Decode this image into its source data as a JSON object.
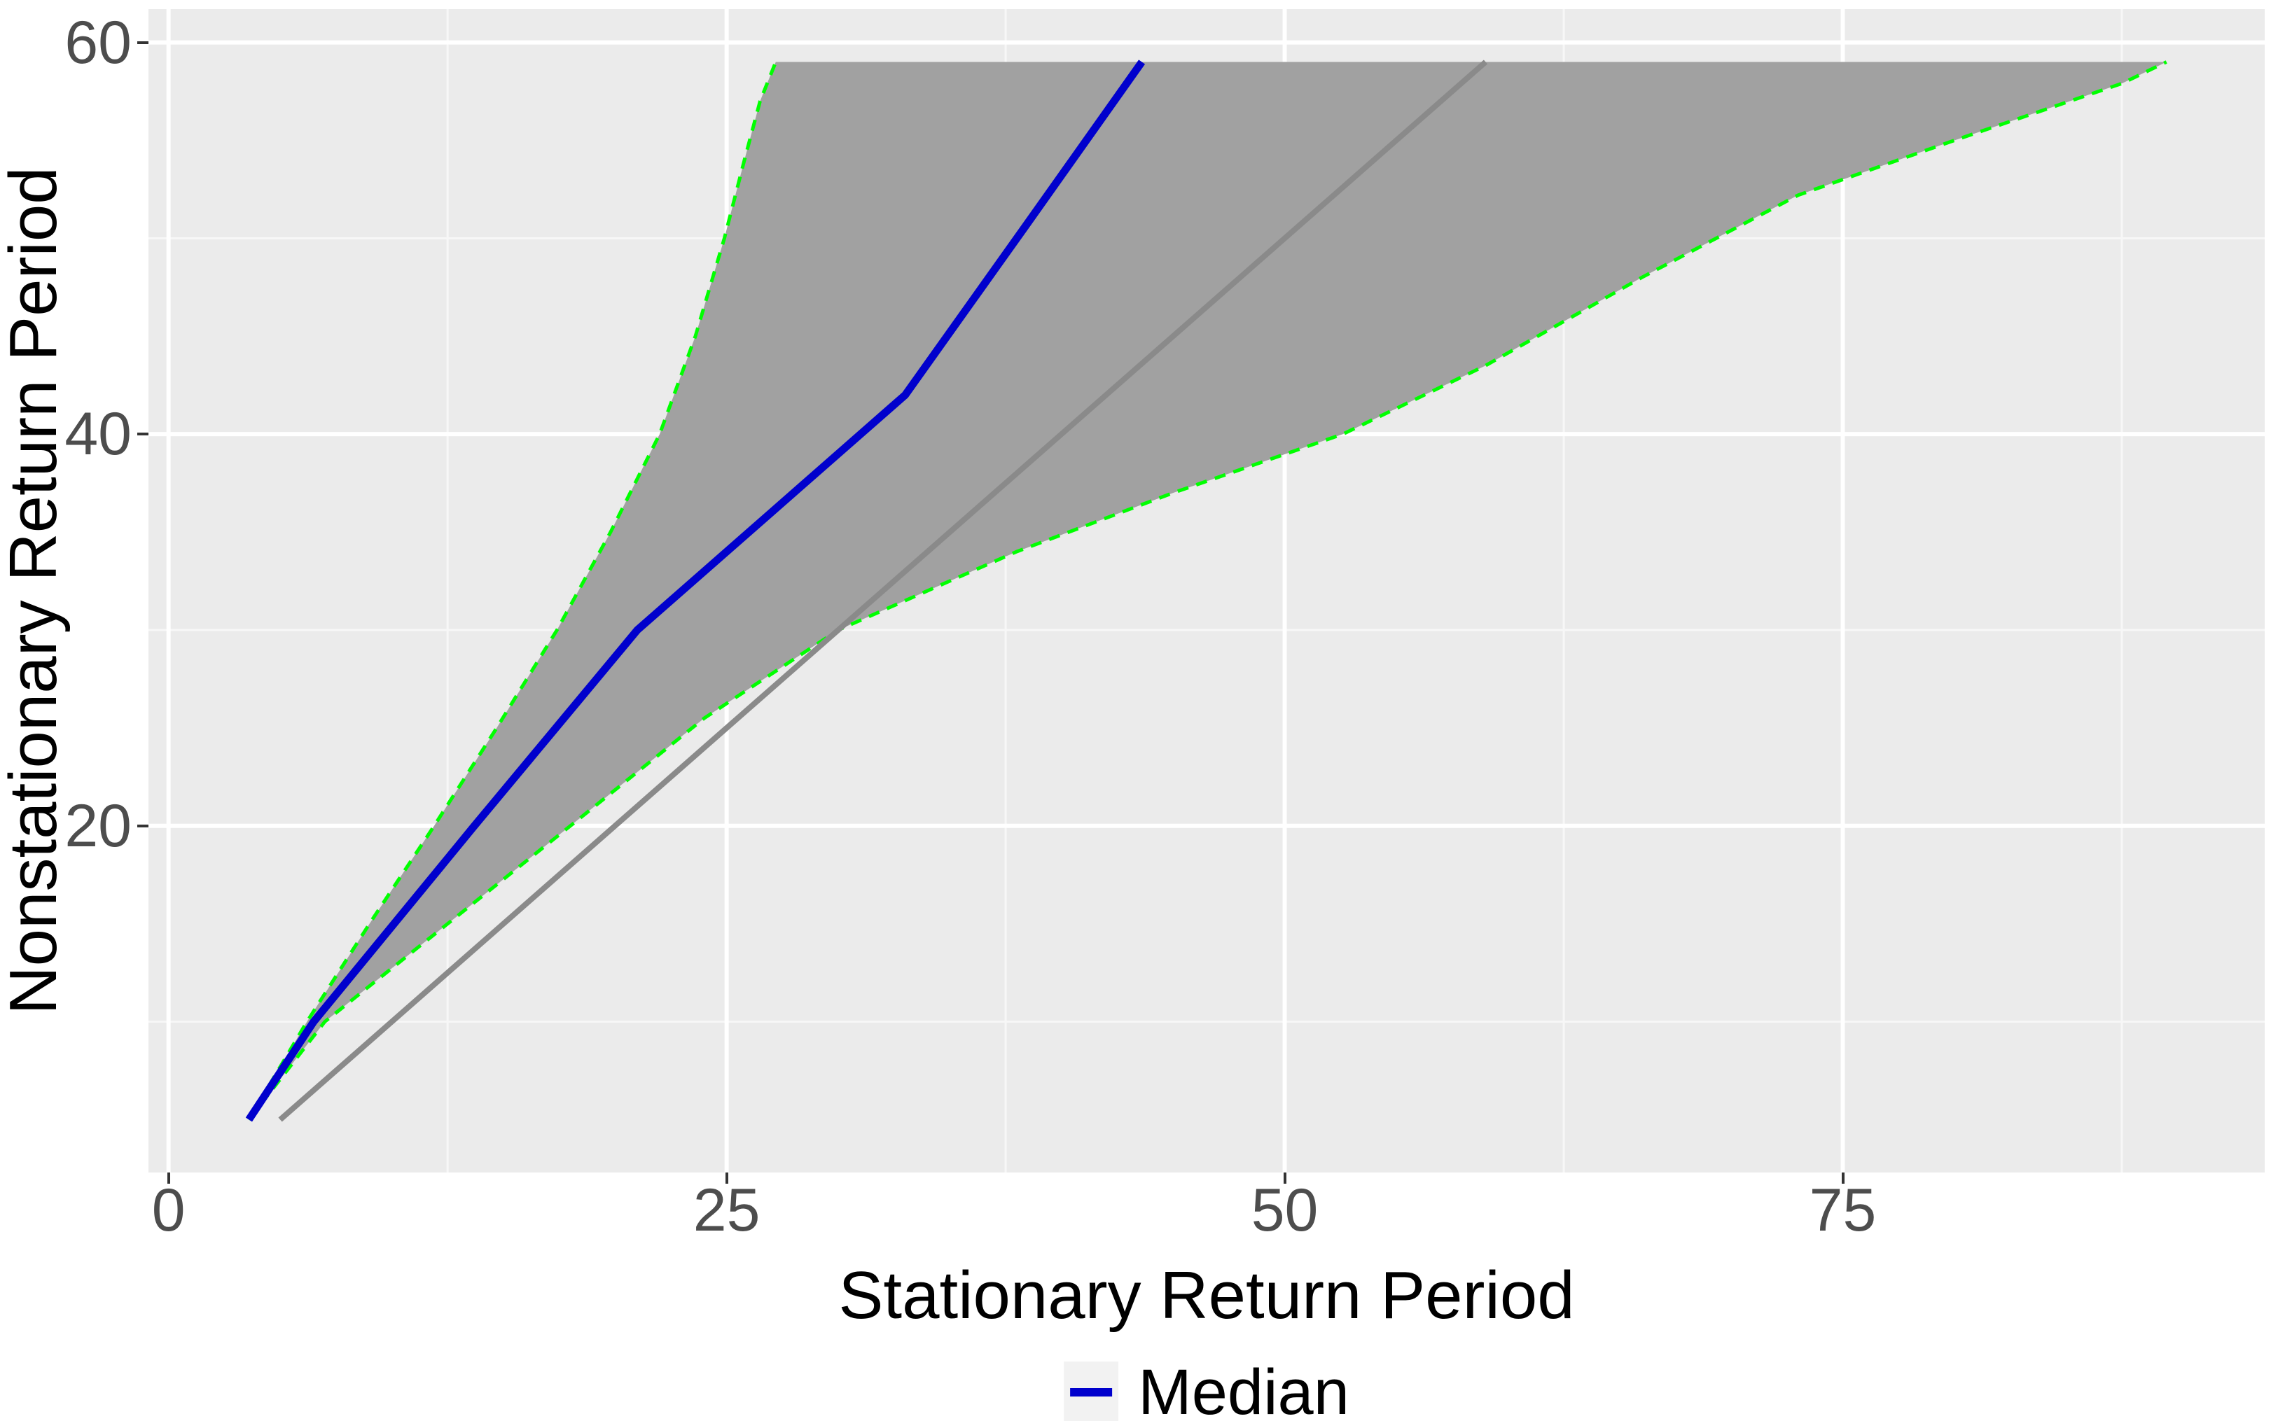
{
  "colors": {
    "panel_background": "#EBEBEB",
    "grid_major": "#FFFFFF",
    "grid_minor": "#F7F7F7",
    "band_fill": "#A1A1A1",
    "band_border": "#00FF00",
    "median_line": "#0000CD",
    "reference_line": "#8A8A8A",
    "tick_mark": "#333333",
    "tick_text": "#4D4D4D",
    "axis_title_text": "#000000",
    "legend_key_background": "#F2F2F2"
  },
  "chart_data": {
    "type": "area",
    "title": "",
    "xlabel": "Stationary Return Period",
    "ylabel": "Nonstationary Return Period",
    "xlim": [
      -0.9,
      93.9
    ],
    "ylim": [
      2.3,
      61.7
    ],
    "x_ticks": [
      0,
      25,
      50,
      75
    ],
    "y_ticks": [
      20,
      40,
      60
    ],
    "x_minor_gridlines": [
      12.5,
      37.5,
      62.5,
      87.5
    ],
    "y_minor_gridlines": [
      10,
      30,
      50
    ],
    "grid": true,
    "legend": {
      "position": "bottom",
      "entries": [
        {
          "label": "Median",
          "color": "#0000CD",
          "symbol": "line"
        }
      ]
    },
    "series": [
      {
        "name": "confidence-band",
        "role": "band",
        "type": "ribbon",
        "fill": "#A1A1A1",
        "border_color": "#00FF00",
        "border_style": "dashed",
        "upper": [
          [
            3.6,
            5
          ],
          [
            6.2,
            10
          ],
          [
            9,
            15
          ],
          [
            11.9,
            20
          ],
          [
            14.7,
            25
          ],
          [
            17.4,
            30
          ],
          [
            19.8,
            35
          ],
          [
            22,
            40
          ],
          [
            23.6,
            45
          ],
          [
            24.9,
            50
          ],
          [
            25.8,
            54
          ],
          [
            26.5,
            57
          ],
          [
            27.2,
            59
          ]
        ],
        "lower": [
          [
            3.6,
            5
          ],
          [
            7,
            10
          ],
          [
            12.5,
            15
          ],
          [
            18,
            20
          ],
          [
            24,
            25.5
          ],
          [
            30,
            30
          ],
          [
            38,
            34
          ],
          [
            45,
            37
          ],
          [
            52.6,
            40
          ],
          [
            59,
            43.5
          ],
          [
            66,
            48
          ],
          [
            73,
            52.2
          ],
          [
            80,
            55
          ],
          [
            87.5,
            57.9
          ],
          [
            89.5,
            59
          ]
        ]
      },
      {
        "name": "median",
        "role": "median",
        "type": "line",
        "color": "#0000CD",
        "points": [
          [
            3.6,
            5
          ],
          [
            6.5,
            10
          ],
          [
            13.7,
            20
          ],
          [
            21,
            30
          ],
          [
            27,
            36
          ],
          [
            33,
            42
          ],
          [
            38.5,
            50.8
          ],
          [
            43.6,
            59
          ]
        ]
      },
      {
        "name": "one-to-one-reference",
        "role": "reference",
        "type": "line",
        "color": "#8A8A8A",
        "points": [
          [
            5,
            5
          ],
          [
            59,
            59
          ]
        ]
      }
    ]
  }
}
